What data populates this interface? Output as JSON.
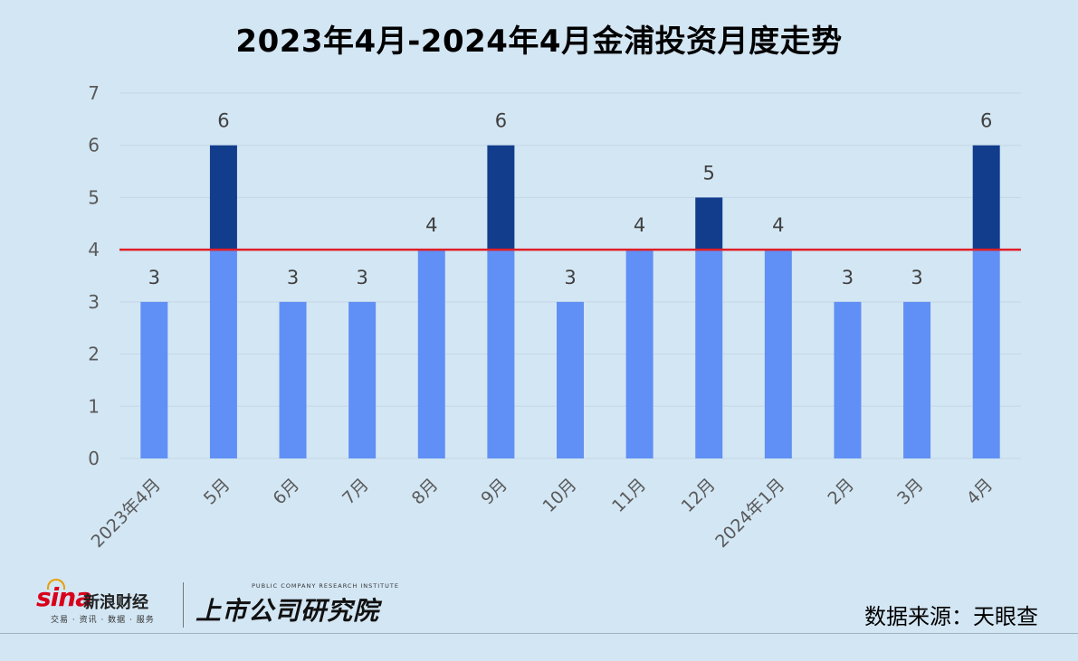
{
  "title": "2023年4月-2024年4月金浦投资月度走势",
  "chart_data": {
    "type": "bar",
    "categories": [
      "2023年4月",
      "5月",
      "6月",
      "7月",
      "8月",
      "9月",
      "10月",
      "11月",
      "12月",
      "2024年1月",
      "2月",
      "3月",
      "4月"
    ],
    "values": [
      3,
      6,
      3,
      3,
      4,
      6,
      3,
      4,
      5,
      4,
      3,
      3,
      6
    ],
    "ylim": [
      0,
      7
    ],
    "yticks": [
      0,
      1,
      2,
      3,
      4,
      5,
      6,
      7
    ],
    "reference_line": 4,
    "grid": true,
    "colors": {
      "bar_base": "#6090f5",
      "bar_above_reference": "#123d8c",
      "reference_line": "#e01e26",
      "grid": "#c5d7e6",
      "tick_text": "#595959",
      "label_text": "#404040"
    }
  },
  "footer": {
    "logo_brand": "sina",
    "logo_name": "新浪财经",
    "logo_tagline": "交易 · 资讯 · 数据 · 服务",
    "institute_en": "PUBLIC COMPANY RESEARCH INSTITUTE",
    "institute_cn": "上市公司研究院",
    "source": "数据来源：天眼查"
  }
}
